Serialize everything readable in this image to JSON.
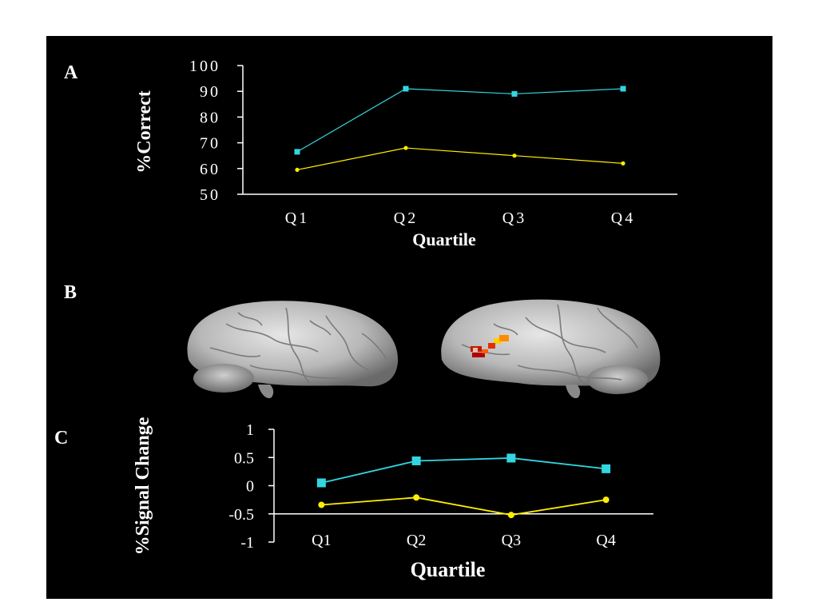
{
  "panels": {
    "a_label": "A",
    "b_label": "B",
    "c_label": "C"
  },
  "colors": {
    "background": "#000000",
    "page": "#ffffff",
    "axis": "#ffffff",
    "series_cyan": "#33d6e0",
    "series_yellow": "#ffee00"
  },
  "brain_views": [
    "lateral-view-left",
    "lateral-view-right"
  ],
  "chart_data": [
    {
      "type": "line",
      "panel": "A",
      "categories": [
        "Q1",
        "Q2",
        "Q3",
        "Q4"
      ],
      "ylabel": "%Correct",
      "xlabel": "Quartile",
      "ylim": [
        50,
        100
      ],
      "yticks": [
        "50",
        "60",
        "70",
        "80",
        "90",
        "100"
      ],
      "series": [
        {
          "color": "#33d6e0",
          "marker": "square",
          "values": [
            66.5,
            91,
            89,
            91
          ]
        },
        {
          "color": "#ffee00",
          "marker": "circle",
          "values": [
            59.5,
            68,
            65,
            62
          ]
        }
      ]
    },
    {
      "type": "line",
      "panel": "C",
      "categories": [
        "Q1",
        "Q2",
        "Q3",
        "Q4"
      ],
      "ylabel": "%Signal Change",
      "xlabel": "Quartile",
      "ylim": [
        -1,
        1
      ],
      "yticks": [
        "1",
        "0.5",
        "0",
        "-0.5",
        "-1"
      ],
      "series": [
        {
          "color": "#33d6e0",
          "marker": "square",
          "values": [
            0.05,
            0.44,
            0.49,
            0.3
          ]
        },
        {
          "color": "#ffee00",
          "marker": "circle",
          "values": [
            -0.34,
            -0.21,
            -0.52,
            -0.25
          ]
        }
      ]
    }
  ]
}
